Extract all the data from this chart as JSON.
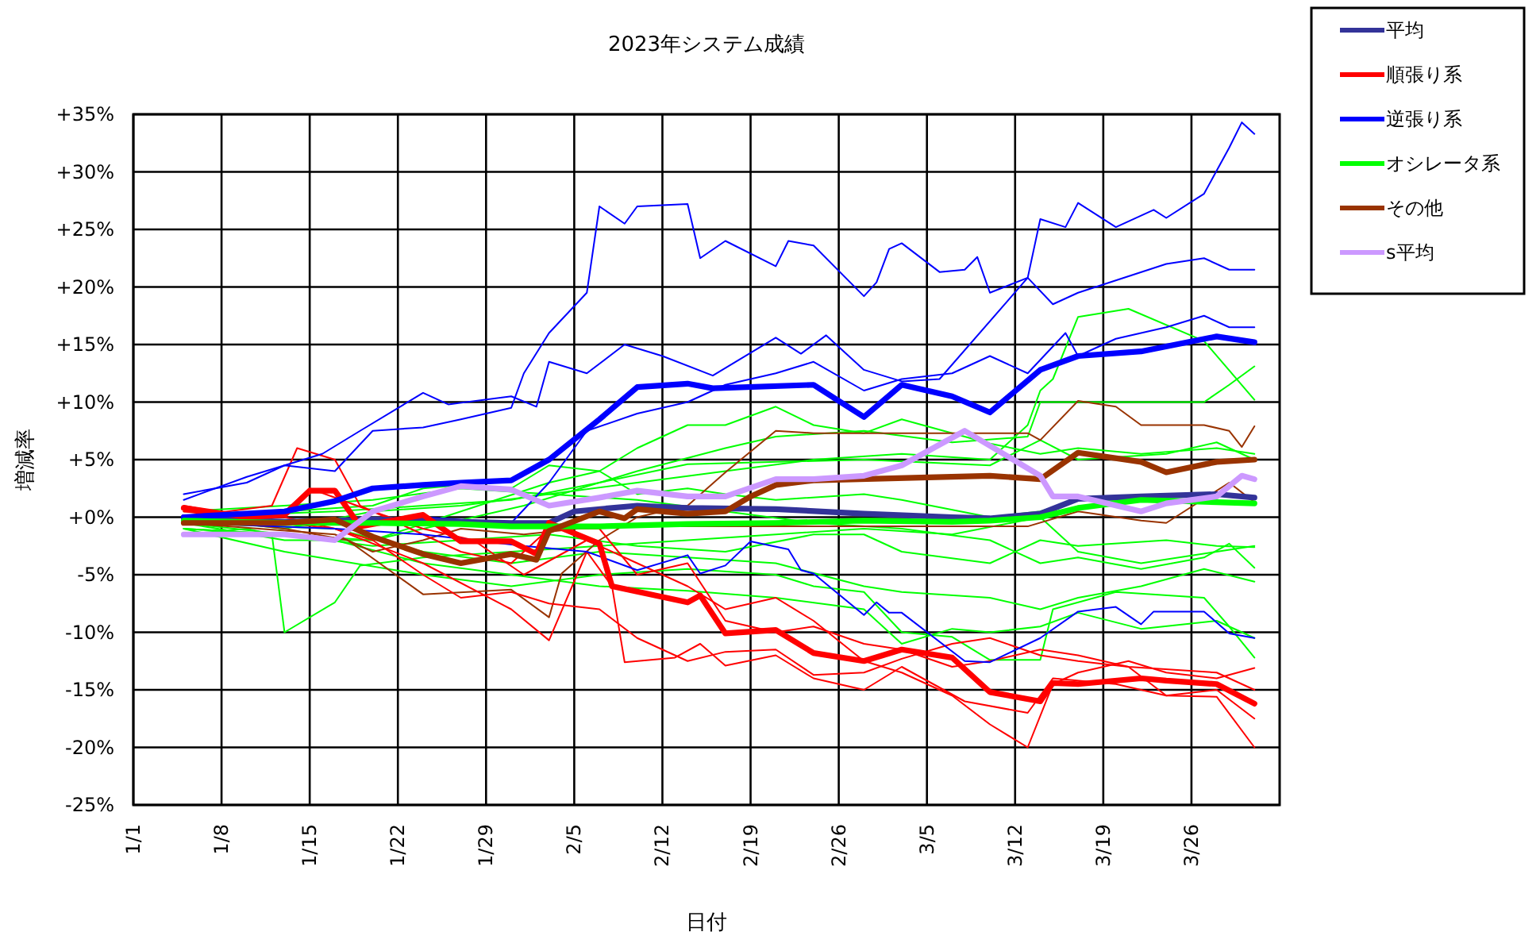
{
  "chart_data": {
    "type": "line",
    "title": "2023年システム成績",
    "xlabel": "日付",
    "ylabel": "増減率",
    "xlim": [
      "2023-01-01",
      "2023-04-02"
    ],
    "xticks": [
      {
        "value": "2023-01-01",
        "label": "1/1"
      },
      {
        "value": "2023-01-08",
        "label": "1/8"
      },
      {
        "value": "2023-01-15",
        "label": "1/15"
      },
      {
        "value": "2023-01-22",
        "label": "1/22"
      },
      {
        "value": "2023-01-29",
        "label": "1/29"
      },
      {
        "value": "2023-02-05",
        "label": "2/5"
      },
      {
        "value": "2023-02-12",
        "label": "2/12"
      },
      {
        "value": "2023-02-19",
        "label": "2/19"
      },
      {
        "value": "2023-02-26",
        "label": "2/26"
      },
      {
        "value": "2023-03-05",
        "label": "3/5"
      },
      {
        "value": "2023-03-12",
        "label": "3/12"
      },
      {
        "value": "2023-03-19",
        "label": "3/19"
      },
      {
        "value": "2023-03-26",
        "label": "3/26"
      }
    ],
    "ylim": [
      -25,
      35
    ],
    "yticks": [
      {
        "value": 35,
        "label": "+35%"
      },
      {
        "value": 30,
        "label": "+30%"
      },
      {
        "value": 25,
        "label": "+25%"
      },
      {
        "value": 20,
        "label": "+20%"
      },
      {
        "value": 15,
        "label": "+15%"
      },
      {
        "value": 10,
        "label": "+10%"
      },
      {
        "value": 5,
        "label": "+5%"
      },
      {
        "value": 0,
        "label": "+0%"
      },
      {
        "value": -5,
        "label": "-5%"
      },
      {
        "value": -10,
        "label": "-10%"
      },
      {
        "value": -15,
        "label": "-15%"
      },
      {
        "value": -20,
        "label": "-20%"
      },
      {
        "value": -25,
        "label": "-25%"
      }
    ],
    "grid": true,
    "legend": "top right",
    "marker": "none",
    "line_style": "solid",
    "series": [
      {
        "color": "#00ff00",
        "x": [
          "2023-01-05",
          "2023-01-13",
          "2023-01-20",
          "2023-01-27",
          "2023-02-03",
          "2023-02-10",
          "2023-02-17",
          "2023-02-24",
          "2023-03-03",
          "2023-03-10",
          "2023-03-13",
          "2023-03-14",
          "2023-03-15",
          "2023-03-17",
          "2023-03-21",
          "2023-03-27",
          "2023-03-31"
        ],
        "values": [
          0,
          -1,
          0.5,
          1,
          2,
          3,
          4,
          5,
          5.5,
          5,
          8,
          11,
          12,
          17.4,
          18.1,
          15.3,
          10.2
        ]
      },
      {
        "color": "#00ff00",
        "x": [
          "2023-01-05",
          "2023-01-20",
          "2023-02-01",
          "2023-02-10",
          "2023-02-17",
          "2023-02-21",
          "2023-02-28",
          "2023-03-07",
          "2023-03-13",
          "2023-03-14",
          "2023-03-17",
          "2023-03-27",
          "2023-03-29",
          "2023-03-31"
        ],
        "values": [
          -1,
          -2,
          1,
          4,
          6,
          7,
          7.5,
          6.5,
          7,
          10,
          10,
          10,
          11.5,
          13.1
        ]
      },
      {
        "color": "#00ff00",
        "x": [
          "2023-01-05",
          "2023-01-13",
          "2023-01-20",
          "2023-01-27",
          "2023-02-03",
          "2023-02-07",
          "2023-02-10",
          "2023-02-14",
          "2023-02-17",
          "2023-02-21",
          "2023-02-24",
          "2023-02-28",
          "2023-03-03",
          "2023-03-10",
          "2023-03-14",
          "2023-03-17",
          "2023-03-22",
          "2023-03-28",
          "2023-03-31"
        ],
        "values": [
          -0.5,
          -2,
          -2,
          0.5,
          3,
          4,
          6,
          8,
          8,
          9.6,
          8,
          7.3,
          8.5,
          6.4,
          5.5,
          6,
          5.5,
          6,
          5.5
        ]
      },
      {
        "color": "#00ff00",
        "x": [
          "2023-01-05",
          "2023-01-17",
          "2023-01-24",
          "2023-01-31",
          "2023-02-07",
          "2023-02-14",
          "2023-02-28",
          "2023-03-10",
          "2023-03-14",
          "2023-03-17",
          "2023-03-24",
          "2023-03-28",
          "2023-03-31"
        ],
        "values": [
          0,
          0.5,
          1,
          1.5,
          3,
          4.6,
          5,
          4.5,
          6.7,
          5,
          5.5,
          6.5,
          5
        ]
      },
      {
        "color": "#00ff00",
        "x": [
          "2023-01-05",
          "2023-01-10",
          "2023-01-12",
          "2023-01-13",
          "2023-01-17",
          "2023-01-19",
          "2023-01-24",
          "2023-01-31",
          "2023-02-07",
          "2023-02-14",
          "2023-02-21",
          "2023-02-28",
          "2023-03-07",
          "2023-03-14",
          "2023-03-17",
          "2023-03-22",
          "2023-03-28",
          "2023-03-31"
        ],
        "values": [
          -1.5,
          -1,
          -1.5,
          -10,
          -7.4,
          -4.2,
          -3.5,
          -3,
          -2.5,
          -2,
          -1.5,
          -1,
          -1.5,
          0,
          -3,
          -4,
          -3,
          -2.5
        ]
      },
      {
        "color": "#00ff00",
        "x": [
          "2023-01-05",
          "2023-01-13",
          "2023-01-24",
          "2023-01-31",
          "2023-02-07",
          "2023-02-14",
          "2023-02-21",
          "2023-02-24",
          "2023-02-28",
          "2023-03-03",
          "2023-03-07",
          "2023-03-10",
          "2023-03-14",
          "2023-03-15",
          "2023-03-20",
          "2023-03-27",
          "2023-03-29",
          "2023-03-31"
        ],
        "values": [
          -1,
          -3,
          -5,
          -6,
          -5,
          -4.5,
          -5,
          -6,
          -6.5,
          -10,
          -10.4,
          -12.4,
          -12.4,
          -8,
          -6.5,
          -7,
          -9.5,
          -12.2
        ]
      },
      {
        "color": "#00ff00",
        "x": [
          "2023-01-05",
          "2023-01-17",
          "2023-01-24",
          "2023-01-31",
          "2023-02-07",
          "2023-02-14",
          "2023-02-21",
          "2023-02-28",
          "2023-03-03",
          "2023-03-10",
          "2023-03-14",
          "2023-03-17",
          "2023-03-22",
          "2023-03-27",
          "2023-03-31"
        ],
        "values": [
          -0.5,
          -1,
          -3,
          -4,
          -3,
          -3.5,
          -4,
          -6,
          -6.5,
          -7,
          -8,
          -7,
          -6,
          -4.5,
          -5.6
        ]
      },
      {
        "color": "#00ff00",
        "x": [
          "2023-01-05",
          "2023-01-13",
          "2023-01-20",
          "2023-01-27",
          "2023-02-03",
          "2023-02-10",
          "2023-02-17",
          "2023-02-24",
          "2023-03-03",
          "2023-03-10",
          "2023-03-14",
          "2023-03-17",
          "2023-03-22",
          "2023-03-27",
          "2023-03-29",
          "2023-03-31"
        ],
        "values": [
          0.5,
          1,
          1.5,
          2.5,
          2,
          1.5,
          0.5,
          -0.5,
          -1,
          -2,
          -4,
          -3.5,
          -4.5,
          -3.5,
          -2.3,
          -4.4
        ]
      },
      {
        "color": "#00ff00",
        "x": [
          "2023-01-05",
          "2023-01-13",
          "2023-01-20",
          "2023-01-27",
          "2023-02-03",
          "2023-02-10",
          "2023-02-17",
          "2023-02-24",
          "2023-02-28",
          "2023-03-03",
          "2023-03-10",
          "2023-03-14",
          "2023-03-17",
          "2023-03-24",
          "2023-03-28",
          "2023-03-31"
        ],
        "values": [
          -1,
          -1.5,
          -2.5,
          -2,
          -1.5,
          -2.5,
          -3,
          -1.5,
          -1.5,
          -3,
          -4,
          -2,
          -2.5,
          -2,
          -2.5,
          -2.6
        ]
      },
      {
        "color": "#00ff00",
        "x": [
          "2023-01-05",
          "2023-01-13",
          "2023-01-20",
          "2023-01-24",
          "2023-01-27",
          "2023-01-31",
          "2023-02-03",
          "2023-02-07",
          "2023-02-10",
          "2023-02-14",
          "2023-02-17",
          "2023-02-21",
          "2023-02-28",
          "2023-03-03",
          "2023-03-10",
          "2023-03-14",
          "2023-03-17",
          "2023-03-24",
          "2023-03-31"
        ],
        "values": [
          0,
          0.5,
          1,
          2.5,
          2.8,
          2.5,
          4.5,
          4,
          2,
          2.5,
          2,
          1.5,
          2,
          1.5,
          0,
          0.5,
          1.5,
          1.5,
          1.2
        ]
      },
      {
        "color": "#00ff00",
        "x": [
          "2023-01-05",
          "2023-01-17",
          "2023-01-24",
          "2023-01-31",
          "2023-02-07",
          "2023-02-14",
          "2023-02-21",
          "2023-02-28",
          "2023-03-03",
          "2023-03-07",
          "2023-03-10",
          "2023-03-14",
          "2023-03-17",
          "2023-03-22",
          "2023-03-28",
          "2023-03-31"
        ],
        "values": [
          -0.5,
          -2,
          -4,
          -5,
          -6,
          -6.4,
          -7,
          -8,
          -11,
          -9.7,
          -10,
          -9.5,
          -8.3,
          -9.7,
          -9,
          -10.5
        ]
      },
      {
        "color": "#993300",
        "x": [
          "2023-01-05",
          "2023-01-13",
          "2023-01-18",
          "2023-01-24",
          "2023-01-31",
          "2023-02-03",
          "2023-02-04",
          "2023-02-07",
          "2023-02-10",
          "2023-02-14",
          "2023-02-17",
          "2023-02-21",
          "2023-02-24",
          "2023-03-13",
          "2023-03-14",
          "2023-03-17",
          "2023-03-20",
          "2023-03-22",
          "2023-03-27",
          "2023-03-29",
          "2023-03-30",
          "2023-03-31"
        ],
        "values": [
          0,
          -1,
          -2,
          -6.7,
          -6.3,
          -8.7,
          -4.9,
          -2,
          0,
          1,
          3.9,
          7.5,
          7.3,
          7.3,
          6.7,
          10.1,
          9.6,
          8,
          8,
          7.5,
          6.1,
          7.9
        ]
      },
      {
        "color": "#993300",
        "x": [
          "2023-01-05",
          "2023-01-17",
          "2023-01-20",
          "2023-01-24",
          "2023-01-27",
          "2023-02-01",
          "2023-02-07",
          "2023-03-13",
          "2023-03-17",
          "2023-03-22",
          "2023-03-24",
          "2023-03-29",
          "2023-03-31"
        ],
        "values": [
          -0.5,
          -1.5,
          -3,
          -2,
          -1,
          -1.5,
          -0.8,
          -0.8,
          0.5,
          -0.3,
          -0.5,
          3,
          1.3
        ]
      },
      {
        "color": "#ff0000",
        "x": [
          "2023-01-05",
          "2023-01-17",
          "2023-01-24",
          "2023-01-31",
          "2023-02-03",
          "2023-02-06",
          "2023-02-08",
          "2023-02-09",
          "2023-02-13",
          "2023-02-15",
          "2023-02-17",
          "2023-02-21",
          "2023-02-24",
          "2023-02-28",
          "2023-03-03",
          "2023-03-08",
          "2023-03-13",
          "2023-03-15",
          "2023-03-20",
          "2023-03-24",
          "2023-03-28",
          "2023-03-31"
        ],
        "values": [
          0.5,
          -1,
          -4,
          -8,
          -10.7,
          -3,
          -6,
          -12.6,
          -12.2,
          -11,
          -12.9,
          -12,
          -14,
          -15,
          -13,
          -16,
          -17,
          -14,
          -14.5,
          -15.5,
          -15.6,
          -20
        ]
      },
      {
        "color": "#ff0000",
        "x": [
          "2023-01-05",
          "2023-01-10",
          "2023-01-13",
          "2023-01-15",
          "2023-01-20",
          "2023-01-24",
          "2023-01-28",
          "2023-02-01",
          "2023-02-06",
          "2023-02-10",
          "2023-02-14",
          "2023-02-17",
          "2023-02-21",
          "2023-02-24",
          "2023-02-28",
          "2023-03-03",
          "2023-03-07",
          "2023-03-10",
          "2023-03-13",
          "2023-03-15",
          "2023-03-17",
          "2023-03-21",
          "2023-03-24",
          "2023-03-28",
          "2023-03-31"
        ],
        "values": [
          1,
          0,
          0.5,
          2.5,
          0.5,
          -1,
          -2,
          -5,
          -2,
          -4,
          -6,
          -8,
          -7,
          -9,
          -12.5,
          -13.5,
          -15.5,
          -18,
          -20,
          -14.5,
          -13.5,
          -12.5,
          -13.5,
          -14,
          -13.1
        ]
      },
      {
        "color": "#ff0000",
        "x": [
          "2023-01-05",
          "2023-01-12",
          "2023-01-14",
          "2023-01-17",
          "2023-01-19",
          "2023-01-23",
          "2023-01-27",
          "2023-01-31",
          "2023-02-03",
          "2023-02-07",
          "2023-02-10",
          "2023-02-14",
          "2023-02-17",
          "2023-02-21",
          "2023-02-24",
          "2023-02-28",
          "2023-03-03",
          "2023-03-07",
          "2023-03-10",
          "2023-03-14",
          "2023-03-17",
          "2023-03-21",
          "2023-03-24",
          "2023-03-28",
          "2023-03-31"
        ],
        "values": [
          0,
          1,
          6,
          5,
          1,
          -1,
          -3,
          -4,
          -1,
          -1,
          -5,
          -4,
          -9,
          -10,
          -9.5,
          -11,
          -11.5,
          -13,
          -12.5,
          -11.5,
          -12,
          -13,
          -15.5,
          -15,
          -17.5
        ]
      },
      {
        "color": "#ff0000",
        "x": [
          "2023-01-05",
          "2023-01-13",
          "2023-01-17",
          "2023-01-20",
          "2023-01-24",
          "2023-01-27",
          "2023-01-31",
          "2023-02-03",
          "2023-02-07",
          "2023-02-10",
          "2023-02-14",
          "2023-02-17",
          "2023-02-21",
          "2023-02-24",
          "2023-02-28",
          "2023-03-03",
          "2023-03-07",
          "2023-03-10",
          "2023-03-14",
          "2023-03-17",
          "2023-03-21",
          "2023-03-28",
          "2023-03-31"
        ],
        "values": [
          0.5,
          0,
          -1,
          -2,
          -5,
          -7,
          -6.5,
          -7.5,
          -8,
          -10.5,
          -12.5,
          -11.7,
          -11.5,
          -13.7,
          -13.5,
          -12.3,
          -11,
          -10.5,
          -12,
          -12.5,
          -13,
          -13.5,
          -15
        ]
      },
      {
        "color": "#0000ff",
        "x": [
          "2023-01-05",
          "2023-01-10",
          "2023-01-13",
          "2023-01-17",
          "2023-01-20",
          "2023-01-24",
          "2023-01-27",
          "2023-01-31",
          "2023-02-01",
          "2023-02-03",
          "2023-02-06",
          "2023-02-07",
          "2023-02-09",
          "2023-02-10",
          "2023-02-14",
          "2023-02-15",
          "2023-02-17",
          "2023-02-21",
          "2023-02-22",
          "2023-02-24",
          "2023-02-28",
          "2023-03-01",
          "2023-03-02",
          "2023-03-03",
          "2023-03-06",
          "2023-03-08",
          "2023-03-09",
          "2023-03-10",
          "2023-03-13",
          "2023-03-14",
          "2023-03-16",
          "2023-03-17",
          "2023-03-20",
          "2023-03-23",
          "2023-03-24",
          "2023-03-27",
          "2023-03-29",
          "2023-03-30",
          "2023-03-31"
        ],
        "values": [
          2,
          3,
          4.5,
          4,
          7.5,
          7.8,
          8.5,
          9.5,
          12.5,
          16,
          19.5,
          27,
          25.5,
          27,
          27.2,
          22.5,
          24,
          21.8,
          24,
          23.6,
          19.2,
          20.4,
          23.3,
          23.8,
          21.3,
          21.5,
          22.6,
          19.5,
          20.8,
          25.9,
          25.2,
          27.3,
          25.2,
          26.7,
          26,
          28.1,
          32.1,
          34.3,
          33.3
        ]
      },
      {
        "color": "#0000ff",
        "x": [
          "2023-01-05",
          "2023-01-10",
          "2023-01-16",
          "2023-01-19",
          "2023-01-24",
          "2023-01-26",
          "2023-01-31",
          "2023-02-02",
          "2023-02-03",
          "2023-02-06",
          "2023-02-09",
          "2023-02-12",
          "2023-02-16",
          "2023-02-21",
          "2023-02-23",
          "2023-02-25",
          "2023-02-28",
          "2023-03-03",
          "2023-03-06",
          "2023-03-13",
          "2023-03-15",
          "2023-03-17",
          "2023-03-24",
          "2023-03-27",
          "2023-03-29",
          "2023-03-31"
        ],
        "values": [
          1.5,
          3.5,
          5.5,
          7.5,
          10.8,
          9.8,
          10.5,
          9.6,
          13.5,
          12.5,
          15,
          14,
          12.3,
          15.6,
          14.2,
          15.8,
          12.8,
          11.8,
          12,
          20.8,
          18.5,
          19.5,
          22,
          22.5,
          21.5,
          21.5
        ]
      },
      {
        "color": "#0000ff",
        "x": [
          "2023-01-05",
          "2023-01-15",
          "2023-01-24",
          "2023-01-31",
          "2023-02-03",
          "2023-02-06",
          "2023-02-10",
          "2023-02-14",
          "2023-02-17",
          "2023-02-21",
          "2023-02-24",
          "2023-02-28",
          "2023-03-03",
          "2023-03-07",
          "2023-03-10",
          "2023-03-13",
          "2023-03-16",
          "2023-03-17",
          "2023-03-20",
          "2023-03-24",
          "2023-03-27",
          "2023-03-29",
          "2023-03-31"
        ],
        "values": [
          0,
          -0.5,
          0,
          -0.5,
          3,
          7.5,
          9,
          10,
          11.5,
          12.5,
          13.5,
          11,
          12,
          12.5,
          14,
          12.5,
          16,
          14,
          15.5,
          16.5,
          17.5,
          16.5,
          16.5
        ]
      },
      {
        "color": "#0000ff",
        "x": [
          "2023-01-05",
          "2023-01-17",
          "2023-01-24",
          "2023-02-01",
          "2023-02-06",
          "2023-02-10",
          "2023-02-14",
          "2023-02-15",
          "2023-02-17",
          "2023-02-19",
          "2023-02-22",
          "2023-02-23",
          "2023-02-24",
          "2023-02-28",
          "2023-03-01",
          "2023-03-02",
          "2023-03-03",
          "2023-03-08",
          "2023-03-10",
          "2023-03-14",
          "2023-03-17",
          "2023-03-20",
          "2023-03-22",
          "2023-03-23",
          "2023-03-27",
          "2023-03-29",
          "2023-03-31"
        ],
        "values": [
          -0.5,
          -1,
          -1.5,
          -2.5,
          -3,
          -4.6,
          -3.3,
          -4.9,
          -4.2,
          -2.1,
          -2.8,
          -4.6,
          -4.9,
          -8.5,
          -7.4,
          -8.3,
          -8.3,
          -12.5,
          -12.6,
          -10.5,
          -8.2,
          -7.8,
          -9.3,
          -8.2,
          -8.2,
          -10.1,
          -10.5
        ]
      },
      {
        "name": "平均",
        "color": "#333399",
        "x": [
          "2023-01-05",
          "2023-01-13",
          "2023-01-20",
          "2023-01-31",
          "2023-02-03",
          "2023-02-05",
          "2023-02-10",
          "2023-02-14",
          "2023-02-21",
          "2023-02-28",
          "2023-03-07",
          "2023-03-10",
          "2023-03-14",
          "2023-03-17",
          "2023-03-22",
          "2023-03-28",
          "2023-03-31"
        ],
        "values": [
          0,
          -0.4,
          -0.2,
          -0.5,
          -0.5,
          0.5,
          1,
          0.8,
          0.7,
          0.3,
          0,
          -0.1,
          0.3,
          1.6,
          1.8,
          2,
          1.7
        ]
      },
      {
        "name": "順張り系",
        "color": "#ff0000",
        "x": [
          "2023-01-05",
          "2023-01-10",
          "2023-01-13",
          "2023-01-15",
          "2023-01-17",
          "2023-01-19",
          "2023-01-24",
          "2023-01-27",
          "2023-01-31",
          "2023-02-02",
          "2023-02-03",
          "2023-02-07",
          "2023-02-08",
          "2023-02-14",
          "2023-02-15",
          "2023-02-17",
          "2023-02-21",
          "2023-02-24",
          "2023-02-28",
          "2023-03-03",
          "2023-03-07",
          "2023-03-10",
          "2023-03-14",
          "2023-03-15",
          "2023-03-17",
          "2023-03-22",
          "2023-03-24",
          "2023-03-28",
          "2023-03-31"
        ],
        "values": [
          0.8,
          0,
          0.2,
          2.3,
          2.3,
          -0.8,
          0.2,
          -2.1,
          -2.1,
          -3.2,
          -0.5,
          -2.3,
          -6,
          -7.4,
          -6.8,
          -10.1,
          -9.8,
          -11.8,
          -12.5,
          -11.5,
          -12.2,
          -15.2,
          -16,
          -14.4,
          -14.5,
          -14,
          -14.2,
          -14.5,
          -16.2
        ]
      },
      {
        "name": "逆張り系",
        "color": "#0000ff",
        "x": [
          "2023-01-05",
          "2023-01-13",
          "2023-01-17",
          "2023-01-20",
          "2023-01-24",
          "2023-01-27",
          "2023-01-31",
          "2023-02-03",
          "2023-02-07",
          "2023-02-10",
          "2023-02-14",
          "2023-02-16",
          "2023-02-24",
          "2023-02-28",
          "2023-03-03",
          "2023-03-07",
          "2023-03-10",
          "2023-03-14",
          "2023-03-17",
          "2023-03-22",
          "2023-03-28",
          "2023-03-31"
        ],
        "values": [
          0,
          0.5,
          1.4,
          2.5,
          2.8,
          3,
          3.2,
          5,
          8.5,
          11.3,
          11.6,
          11.2,
          11.5,
          8.7,
          11.5,
          10.5,
          9.1,
          12.8,
          14,
          14.4,
          15.7,
          15.2
        ]
      },
      {
        "name": "オシレータ系",
        "color": "#00ff00",
        "x": [
          "2023-01-05",
          "2023-01-13",
          "2023-01-20",
          "2023-01-27",
          "2023-01-31",
          "2023-02-07",
          "2023-02-14",
          "2023-02-21",
          "2023-02-28",
          "2023-03-07",
          "2023-03-10",
          "2023-03-14",
          "2023-03-17",
          "2023-03-22",
          "2023-03-28",
          "2023-03-31"
        ],
        "values": [
          -0.3,
          -0.5,
          -0.5,
          -0.6,
          -0.8,
          -0.8,
          -0.6,
          -0.5,
          -0.3,
          -0.4,
          -0.3,
          0,
          0.8,
          1.5,
          1.3,
          1.2
        ]
      },
      {
        "name": "その他",
        "color": "#993300",
        "x": [
          "2023-01-05",
          "2023-01-13",
          "2023-01-17",
          "2023-01-20",
          "2023-01-24",
          "2023-01-27",
          "2023-01-31",
          "2023-02-02",
          "2023-02-03",
          "2023-02-07",
          "2023-02-09",
          "2023-02-10",
          "2023-02-14",
          "2023-02-17",
          "2023-02-19",
          "2023-02-21",
          "2023-02-24",
          "2023-03-10",
          "2023-03-14",
          "2023-03-17",
          "2023-03-22",
          "2023-03-24",
          "2023-03-28",
          "2023-03-31"
        ],
        "values": [
          -0.5,
          -0.5,
          -0.2,
          -1.7,
          -3.2,
          -4,
          -3.2,
          -3.7,
          -1.2,
          0.5,
          -0.1,
          0.7,
          0.3,
          0.5,
          1.8,
          2.8,
          3.2,
          3.6,
          3.3,
          5.6,
          4.8,
          3.9,
          4.8,
          5
        ]
      },
      {
        "name": "s平均",
        "color": "#cc99ff",
        "x": [
          "2023-01-05",
          "2023-01-13",
          "2023-01-17",
          "2023-01-20",
          "2023-01-24",
          "2023-01-27",
          "2023-01-31",
          "2023-02-03",
          "2023-02-07",
          "2023-02-10",
          "2023-02-14",
          "2023-02-17",
          "2023-02-21",
          "2023-02-24",
          "2023-02-28",
          "2023-03-03",
          "2023-03-08",
          "2023-03-14",
          "2023-03-15",
          "2023-03-17",
          "2023-03-22",
          "2023-03-24",
          "2023-03-28",
          "2023-03-30",
          "2023-03-31"
        ],
        "values": [
          -1.5,
          -1.5,
          -2,
          0.5,
          1.8,
          2.7,
          2.4,
          1,
          1.7,
          2.3,
          1.8,
          1.8,
          3.3,
          3.3,
          3.6,
          4.5,
          7.5,
          3.6,
          1.8,
          1.8,
          0.5,
          1.2,
          1.8,
          3.6,
          3.3
        ]
      }
    ]
  }
}
